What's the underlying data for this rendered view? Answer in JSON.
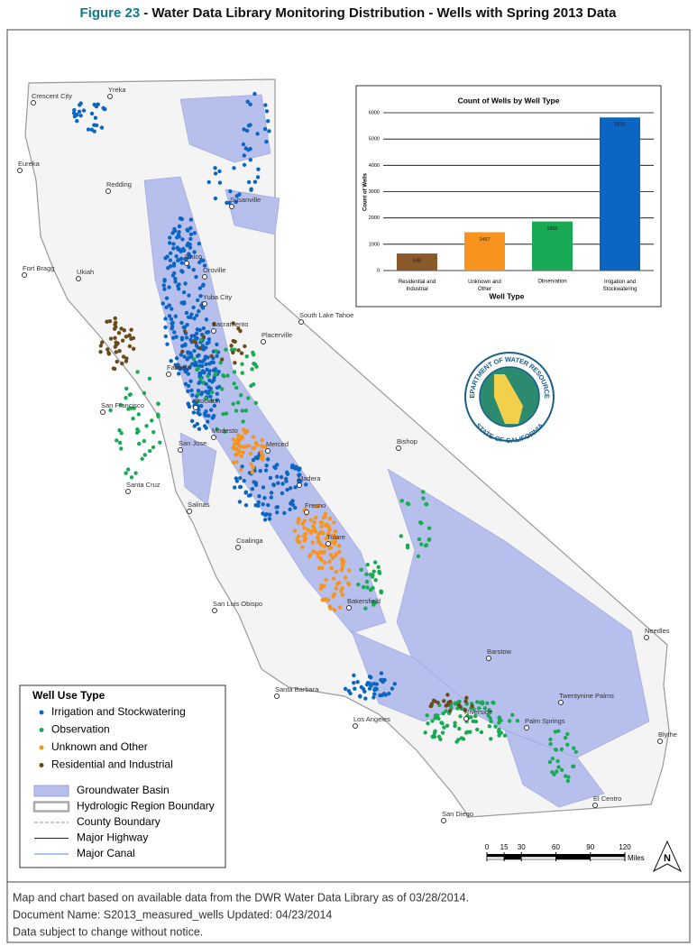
{
  "header": {
    "figure_label": "Figure 23",
    "title": "- Water Data Library Monitoring Distribution - Wells with Spring 2013 Data"
  },
  "map": {
    "cities": [
      "Crescent City",
      "Yreka",
      "Eureka",
      "Redding",
      "Susanville",
      "Fort Bragg",
      "Chico",
      "Oroville",
      "Ukiah",
      "Yuba City",
      "South Lake Tahoe",
      "Placerville",
      "Sacramento",
      "Fairfield",
      "Stockton",
      "San Francisco",
      "Modesto",
      "Merced",
      "San Jose",
      "Bishop",
      "Santa Cruz",
      "Madera",
      "Fresno",
      "Salinas",
      "Tulare",
      "Coalinga",
      "Bakersfield",
      "San Luis Obispo",
      "Needles",
      "Barstow",
      "Santa Barbara",
      "Twentynine Palms",
      "Los Angeles",
      "Riverside",
      "Palm Springs",
      "Blythe",
      "El Centro",
      "San Diego"
    ]
  },
  "chart_data": {
    "type": "bar",
    "title": "Count of Wells by Well Type",
    "x_label": "Well Type",
    "y_label": "Count of Wells",
    "categories": [
      "Residential and Industrial",
      "Unknown and Other",
      "Observation",
      "Irrigation and Stockwatering"
    ],
    "values": [
      648,
      1457,
      1865,
      5820
    ],
    "colors": [
      "#8b5a2b",
      "#f7941d",
      "#1aaa55",
      "#0b66c2"
    ],
    "ylim": [
      0,
      6000
    ],
    "yticks": [
      0,
      1000,
      2000,
      3000,
      4000,
      5000,
      6000
    ]
  },
  "legend": {
    "title": "Well Use Type",
    "items": [
      {
        "label": "Irrigation and Stockwatering",
        "color": "#0b66c2"
      },
      {
        "label": "Observation",
        "color": "#1aaa55"
      },
      {
        "label": "Unknown and Other",
        "color": "#f7941d"
      },
      {
        "label": "Residential and Industrial",
        "color": "#6b4a1b"
      }
    ],
    "layers": [
      "Groundwater Basin",
      "Hydrologic Region Boundary",
      "County Boundary",
      "Major Highway",
      "Major Canal"
    ]
  },
  "seal": {
    "top": "DEPARTMENT OF WATER RESOURCES",
    "bottom": "STATE OF CALIFORNIA"
  },
  "scale_bar": {
    "ticks": [
      0,
      15,
      30,
      60,
      90,
      120
    ],
    "xlim": [
      0,
      120
    ],
    "unit": "Miles"
  },
  "north_arrow": "N",
  "footer": {
    "lines": [
      "Map and chart based on available data from the DWR Water Data Library as of 03/28/2014.",
      "Document Name: S2013_measured_wells  Updated: 04/23/2014",
      "Data subject to change without notice."
    ]
  }
}
